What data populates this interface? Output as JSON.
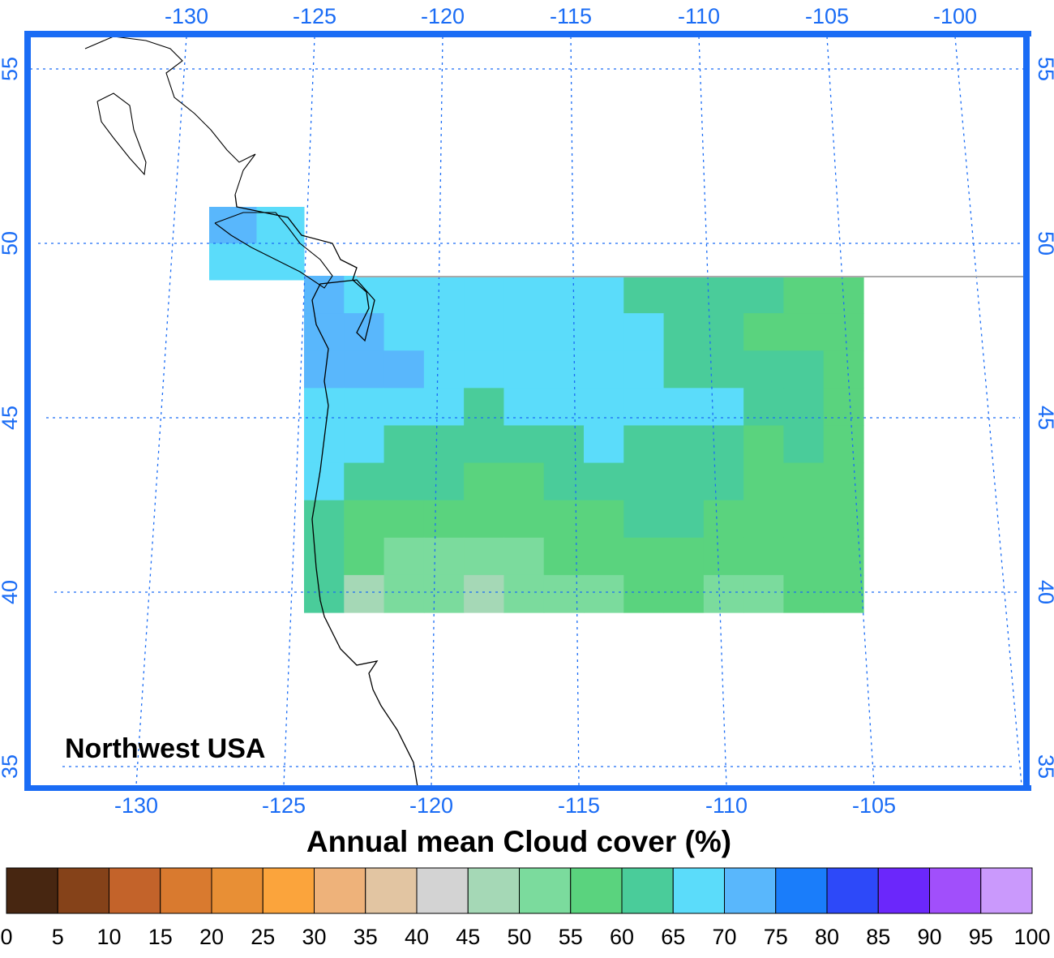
{
  "map": {
    "title": "Northwest USA",
    "colorbar_title": "Annual mean Cloud cover (%)",
    "lon_ticks_top": [
      -130,
      -125,
      -120,
      -115,
      -110,
      -105,
      -100
    ],
    "lon_ticks_bottom": [
      -130,
      -125,
      -120,
      -115,
      -110,
      -105
    ],
    "lat_ticks": [
      55,
      50,
      45,
      40,
      35
    ],
    "colorbar_ticks": [
      0,
      5,
      10,
      15,
      20,
      25,
      30,
      35,
      40,
      45,
      50,
      55,
      60,
      65,
      70,
      75,
      80,
      85,
      90,
      95,
      100
    ],
    "colorbar_colors": [
      "#472611",
      "#854219",
      "#c3632a",
      "#d97a2f",
      "#e88f35",
      "#fba43c",
      "#eeb27a",
      "#e2c5a2",
      "#d3d3d3",
      "#a5d8b6",
      "#7bdb9d",
      "#5ad37e",
      "#4acc9a",
      "#5bdcfa",
      "#59b7fc",
      "#1a7dfa",
      "#2d49f9",
      "#6b27fb",
      "#a14ffb",
      "#ca99fc"
    ],
    "cloud_cover": [
      [
        72,
        67,
        67,
        67,
        67,
        67,
        67,
        67,
        62,
        62,
        62,
        62,
        57,
        57
      ],
      [
        72,
        72,
        67,
        67,
        67,
        67,
        67,
        67,
        67,
        62,
        62,
        57,
        57,
        57
      ],
      [
        72,
        72,
        72,
        67,
        67,
        67,
        67,
        67,
        67,
        62,
        62,
        62,
        62,
        57
      ],
      [
        67,
        67,
        67,
        67,
        62,
        67,
        67,
        67,
        67,
        67,
        67,
        62,
        62,
        57
      ],
      [
        67,
        67,
        62,
        62,
        62,
        62,
        62,
        67,
        62,
        62,
        62,
        57,
        62,
        57
      ],
      [
        67,
        62,
        62,
        62,
        57,
        57,
        62,
        62,
        62,
        62,
        62,
        57,
        57,
        57
      ],
      [
        62,
        57,
        57,
        57,
        57,
        57,
        57,
        57,
        62,
        62,
        57,
        57,
        57,
        57
      ],
      [
        62,
        57,
        52,
        52,
        52,
        52,
        57,
        57,
        57,
        57,
        57,
        57,
        57,
        57
      ],
      [
        62,
        47,
        52,
        52,
        47,
        52,
        52,
        52,
        57,
        57,
        52,
        52,
        57,
        57
      ]
    ],
    "island_cloud_cover": [
      [
        72,
        67
      ],
      [
        67,
        67
      ]
    ]
  }
}
